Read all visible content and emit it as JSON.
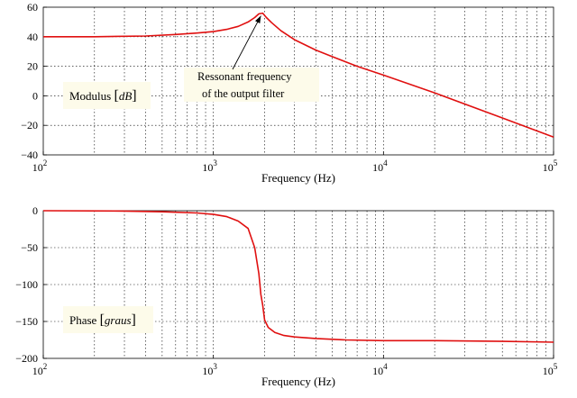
{
  "chart_data": [
    {
      "type": "line",
      "xscale": "log",
      "xlim": [
        100,
        100000
      ],
      "ylim": [
        -40,
        60
      ],
      "yticks": [
        60,
        40,
        20,
        0,
        -20,
        -40
      ],
      "ytick_labels": [
        "60",
        "40",
        "20",
        "0",
        "−20",
        "−40"
      ],
      "xticks": [
        {
          "base": "10",
          "exp": "2",
          "value": 100
        },
        {
          "base": "10",
          "exp": "3",
          "value": 1000
        },
        {
          "base": "10",
          "exp": "4",
          "value": 10000
        },
        {
          "base": "10",
          "exp": "5",
          "value": 100000
        }
      ],
      "xlabel": "Frequency (Hz)",
      "ylabel_box": {
        "text": "Modulus ",
        "open": "[",
        "unit": "dB",
        "close": "]"
      },
      "annotation": {
        "line1": "Ressonant frequency",
        "line2": "of the output filter",
        "x": 1950,
        "y": 56
      },
      "grid": true,
      "series": [
        {
          "color": "#e01010",
          "x": [
            100,
            200,
            400,
            600,
            800,
            1000,
            1200,
            1400,
            1600,
            1750,
            1850,
            1950,
            2050,
            2200,
            2500,
            3000,
            4000,
            5000,
            7000,
            10000,
            20000,
            50000,
            100000
          ],
          "y": [
            40,
            40,
            40.5,
            41.5,
            42.5,
            43.5,
            45,
            47,
            50,
            53,
            55.5,
            56,
            53,
            49.5,
            44,
            38,
            31,
            26.5,
            20,
            14,
            2,
            -15,
            -28
          ]
        }
      ]
    },
    {
      "type": "line",
      "xscale": "log",
      "xlim": [
        100,
        100000
      ],
      "ylim": [
        -200,
        0
      ],
      "yticks": [
        0,
        -50,
        -100,
        -150,
        -200
      ],
      "ytick_labels": [
        "0",
        "−50",
        "−100",
        "−150",
        "−200"
      ],
      "xticks": [
        {
          "base": "10",
          "exp": "2",
          "value": 100
        },
        {
          "base": "10",
          "exp": "3",
          "value": 1000
        },
        {
          "base": "10",
          "exp": "4",
          "value": 10000
        },
        {
          "base": "10",
          "exp": "5",
          "value": 100000
        }
      ],
      "xlabel": "Frequency (Hz)",
      "ylabel_box": {
        "text": "Phase ",
        "open": "[",
        "unit": "graus",
        "close": "]"
      },
      "grid": true,
      "series": [
        {
          "color": "#e01010",
          "x": [
            100,
            300,
            500,
            800,
            1000,
            1200,
            1400,
            1600,
            1750,
            1850,
            1900,
            1950,
            2000,
            2100,
            2300,
            2600,
            3000,
            4000,
            6000,
            10000,
            20000,
            50000,
            100000
          ],
          "y": [
            0,
            -0.5,
            -1.5,
            -3,
            -5,
            -8,
            -14,
            -24,
            -50,
            -85,
            -113,
            -128,
            -148,
            -158,
            -165,
            -169,
            -171,
            -173,
            -175,
            -176,
            -176,
            -177,
            -178
          ]
        }
      ]
    }
  ]
}
